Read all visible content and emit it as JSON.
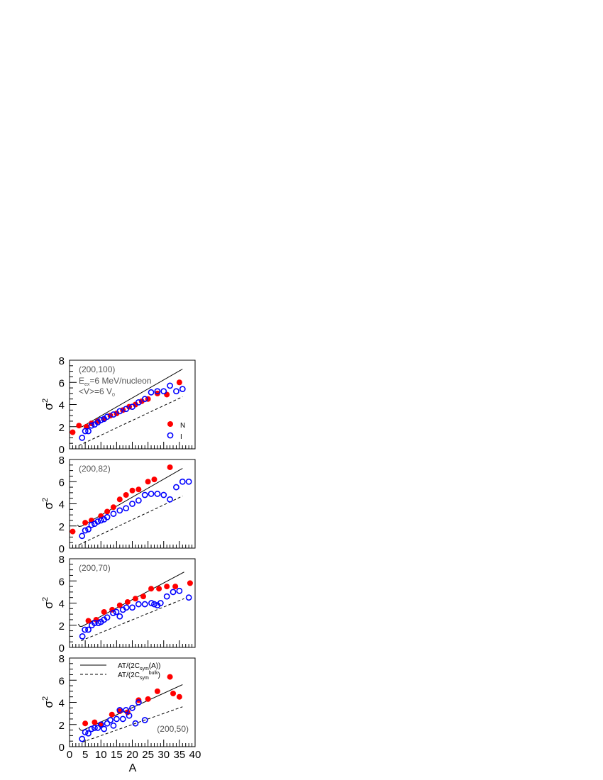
{
  "chart_data": [
    {
      "type": "scatter",
      "label": "(200,100)",
      "annotations": {
        "eex_main": "E",
        "eex_sub": "ex",
        "eex_rest": "=6 MeV/nucleon",
        "v_main": "<V>=6 V",
        "v_sub": "0"
      },
      "legend": {
        "N": "N",
        "I": "I"
      },
      "series": [
        {
          "name": "N",
          "color": "#ff0000",
          "marker": "filled",
          "points": [
            [
              1,
              1.5
            ],
            [
              3,
              2.1
            ],
            [
              5.4,
              2.0
            ],
            [
              7,
              2.3
            ],
            [
              9,
              2.5
            ],
            [
              11,
              2.7
            ],
            [
              13,
              3.0
            ],
            [
              15,
              3.2
            ],
            [
              17,
              3.5
            ],
            [
              19,
              3.8
            ],
            [
              21,
              4.0
            ],
            [
              23,
              4.3
            ],
            [
              25,
              4.5
            ],
            [
              28,
              5.0
            ],
            [
              31,
              4.9
            ],
            [
              35,
              6.0
            ]
          ]
        },
        {
          "name": "I",
          "color": "#0000ff",
          "marker": "open",
          "points": [
            [
              4,
              1.0
            ],
            [
              5,
              1.6
            ],
            [
              6,
              1.6
            ],
            [
              7,
              2.1
            ],
            [
              8,
              2.2
            ],
            [
              9,
              2.4
            ],
            [
              10,
              2.6
            ],
            [
              11,
              2.7
            ],
            [
              12,
              2.9
            ],
            [
              14,
              3.1
            ],
            [
              16,
              3.4
            ],
            [
              18,
              3.6
            ],
            [
              20,
              3.8
            ],
            [
              22,
              4.2
            ],
            [
              24,
              4.5
            ],
            [
              26,
              5.1
            ],
            [
              28,
              5.2
            ],
            [
              30,
              5.2
            ],
            [
              32,
              5.7
            ],
            [
              34,
              5.2
            ],
            [
              36,
              5.4
            ]
          ]
        }
      ],
      "solid": [
        [
          2.5,
          2.1
        ],
        [
          3,
          1.95
        ],
        [
          4,
          2.0
        ],
        [
          36,
          7.2
        ]
      ],
      "dashed": [
        [
          3,
          0.3
        ],
        [
          36,
          4.7
        ]
      ]
    },
    {
      "type": "scatter",
      "label": "(200,82)",
      "series": [
        {
          "name": "N",
          "color": "#ff0000",
          "marker": "filled",
          "points": [
            [
              1,
              1.5
            ],
            [
              5,
              2.3
            ],
            [
              7,
              2.5
            ],
            [
              10,
              2.9
            ],
            [
              12,
              3.3
            ],
            [
              14,
              3.7
            ],
            [
              16,
              4.4
            ],
            [
              18,
              4.8
            ],
            [
              20,
              5.2
            ],
            [
              22,
              5.3
            ],
            [
              25,
              6.0
            ],
            [
              27,
              6.2
            ],
            [
              32,
              7.3
            ]
          ]
        },
        {
          "name": "I",
          "color": "#0000ff",
          "marker": "open",
          "points": [
            [
              4,
              1.1
            ],
            [
              5,
              1.6
            ],
            [
              6,
              1.7
            ],
            [
              7,
              2.1
            ],
            [
              8,
              2.2
            ],
            [
              9,
              2.4
            ],
            [
              10,
              2.5
            ],
            [
              11,
              2.6
            ],
            [
              12,
              2.8
            ],
            [
              14,
              3.1
            ],
            [
              16,
              3.4
            ],
            [
              18,
              3.6
            ],
            [
              20,
              4.0
            ],
            [
              22,
              4.3
            ],
            [
              24,
              4.8
            ],
            [
              26,
              4.9
            ],
            [
              28,
              4.9
            ],
            [
              30,
              4.8
            ],
            [
              32,
              4.4
            ],
            [
              34,
              5.5
            ],
            [
              36,
              6.0
            ],
            [
              38,
              6.0
            ]
          ]
        }
      ],
      "solid": [
        [
          2.5,
          2.1
        ],
        [
          3,
          1.95
        ],
        [
          4,
          2.0
        ],
        [
          36,
          7.2
        ]
      ],
      "dashed": [
        [
          3,
          0.3
        ],
        [
          36,
          4.7
        ]
      ]
    },
    {
      "type": "scatter",
      "label": "(200,70)",
      "series": [
        {
          "name": "N",
          "color": "#ff0000",
          "marker": "filled",
          "points": [
            [
              6,
              2.4
            ],
            [
              8.5,
              2.5
            ],
            [
              11,
              3.2
            ],
            [
              13.6,
              3.4
            ],
            [
              16,
              3.8
            ],
            [
              18.5,
              4.1
            ],
            [
              21,
              4.4
            ],
            [
              23.5,
              4.6
            ],
            [
              26,
              5.3
            ],
            [
              28.5,
              5.3
            ],
            [
              31,
              5.5
            ],
            [
              33.7,
              5.5
            ],
            [
              38.4,
              5.8
            ]
          ]
        },
        {
          "name": "I",
          "color": "#0000ff",
          "marker": "open",
          "points": [
            [
              4.1,
              1.0
            ],
            [
              4.9,
              1.6
            ],
            [
              6,
              1.6
            ],
            [
              7.1,
              2.0
            ],
            [
              8,
              2.2
            ],
            [
              9.2,
              2.2
            ],
            [
              10,
              2.3
            ],
            [
              11,
              2.5
            ],
            [
              12,
              2.7
            ],
            [
              13.9,
              3.1
            ],
            [
              14.9,
              3.2
            ],
            [
              16,
              2.8
            ],
            [
              17,
              3.4
            ],
            [
              18.1,
              3.6
            ],
            [
              20,
              3.6
            ],
            [
              22,
              3.9
            ],
            [
              24,
              3.9
            ],
            [
              26.1,
              4.0
            ],
            [
              27,
              3.9
            ],
            [
              28,
              3.8
            ],
            [
              29,
              4.0
            ],
            [
              31,
              4.6
            ],
            [
              33,
              5.0
            ],
            [
              35,
              5.1
            ],
            [
              38,
              4.5
            ]
          ]
        }
      ],
      "solid": [
        [
          2.8,
          2.1
        ],
        [
          3.3,
          1.9
        ],
        [
          4,
          1.9
        ],
        [
          36.5,
          6.8
        ]
      ],
      "dashed": [
        [
          3.7,
          0.6
        ],
        [
          36.5,
          4.4
        ]
      ]
    },
    {
      "type": "scatter",
      "label": "(200,50)",
      "legend": {
        "solid_main": "AT/(2C",
        "solid_sub": "sym",
        "solid_rest": "(A))",
        "dashed_main": "AT/(2C",
        "dashed_sub": "sym",
        "dashed_sup": "bulk",
        "dashed_rest": ")"
      },
      "series": [
        {
          "name": "N",
          "color": "#ff0000",
          "marker": "filled",
          "points": [
            [
              5,
              2.1
            ],
            [
              8,
              2.2
            ],
            [
              10,
              2.0
            ],
            [
              13.5,
              2.9
            ],
            [
              16,
              3.2
            ],
            [
              18.5,
              3.1
            ],
            [
              22,
              4.2
            ],
            [
              25,
              4.3
            ],
            [
              28,
              5.0
            ],
            [
              32,
              6.3
            ],
            [
              33,
              4.8
            ],
            [
              35,
              4.5
            ]
          ]
        },
        {
          "name": "I",
          "color": "#0000ff",
          "marker": "open",
          "points": [
            [
              4,
              0.7
            ],
            [
              5,
              1.3
            ],
            [
              6,
              1.2
            ],
            [
              7,
              1.6
            ],
            [
              8,
              1.7
            ],
            [
              9,
              1.7
            ],
            [
              10,
              2.0
            ],
            [
              11,
              1.6
            ],
            [
              12,
              2.1
            ],
            [
              13,
              2.4
            ],
            [
              14,
              1.9
            ],
            [
              15,
              2.5
            ],
            [
              16,
              3.3
            ],
            [
              17,
              2.5
            ],
            [
              18,
              3.3
            ],
            [
              19,
              2.8
            ],
            [
              20,
              3.5
            ],
            [
              21,
              2.1
            ],
            [
              22,
              4.0
            ],
            [
              24,
              2.4
            ]
          ]
        }
      ],
      "solid": [
        [
          3,
          1.7
        ],
        [
          3.5,
          1.5
        ],
        [
          4,
          1.45
        ],
        [
          36,
          5.6
        ]
      ],
      "dashed": [
        [
          4,
          0.4
        ],
        [
          36,
          3.6
        ]
      ]
    }
  ],
  "axes": {
    "xlabel": "A",
    "ylabel_main": "σ",
    "ylabel_sup": "2",
    "xlim": [
      0,
      40
    ],
    "ylim": [
      0,
      8
    ],
    "xticks": [
      "0",
      "5",
      "10",
      "15",
      "20",
      "25",
      "30",
      "35",
      "40"
    ],
    "yticks": [
      "0",
      "2",
      "4",
      "6",
      "8"
    ]
  }
}
